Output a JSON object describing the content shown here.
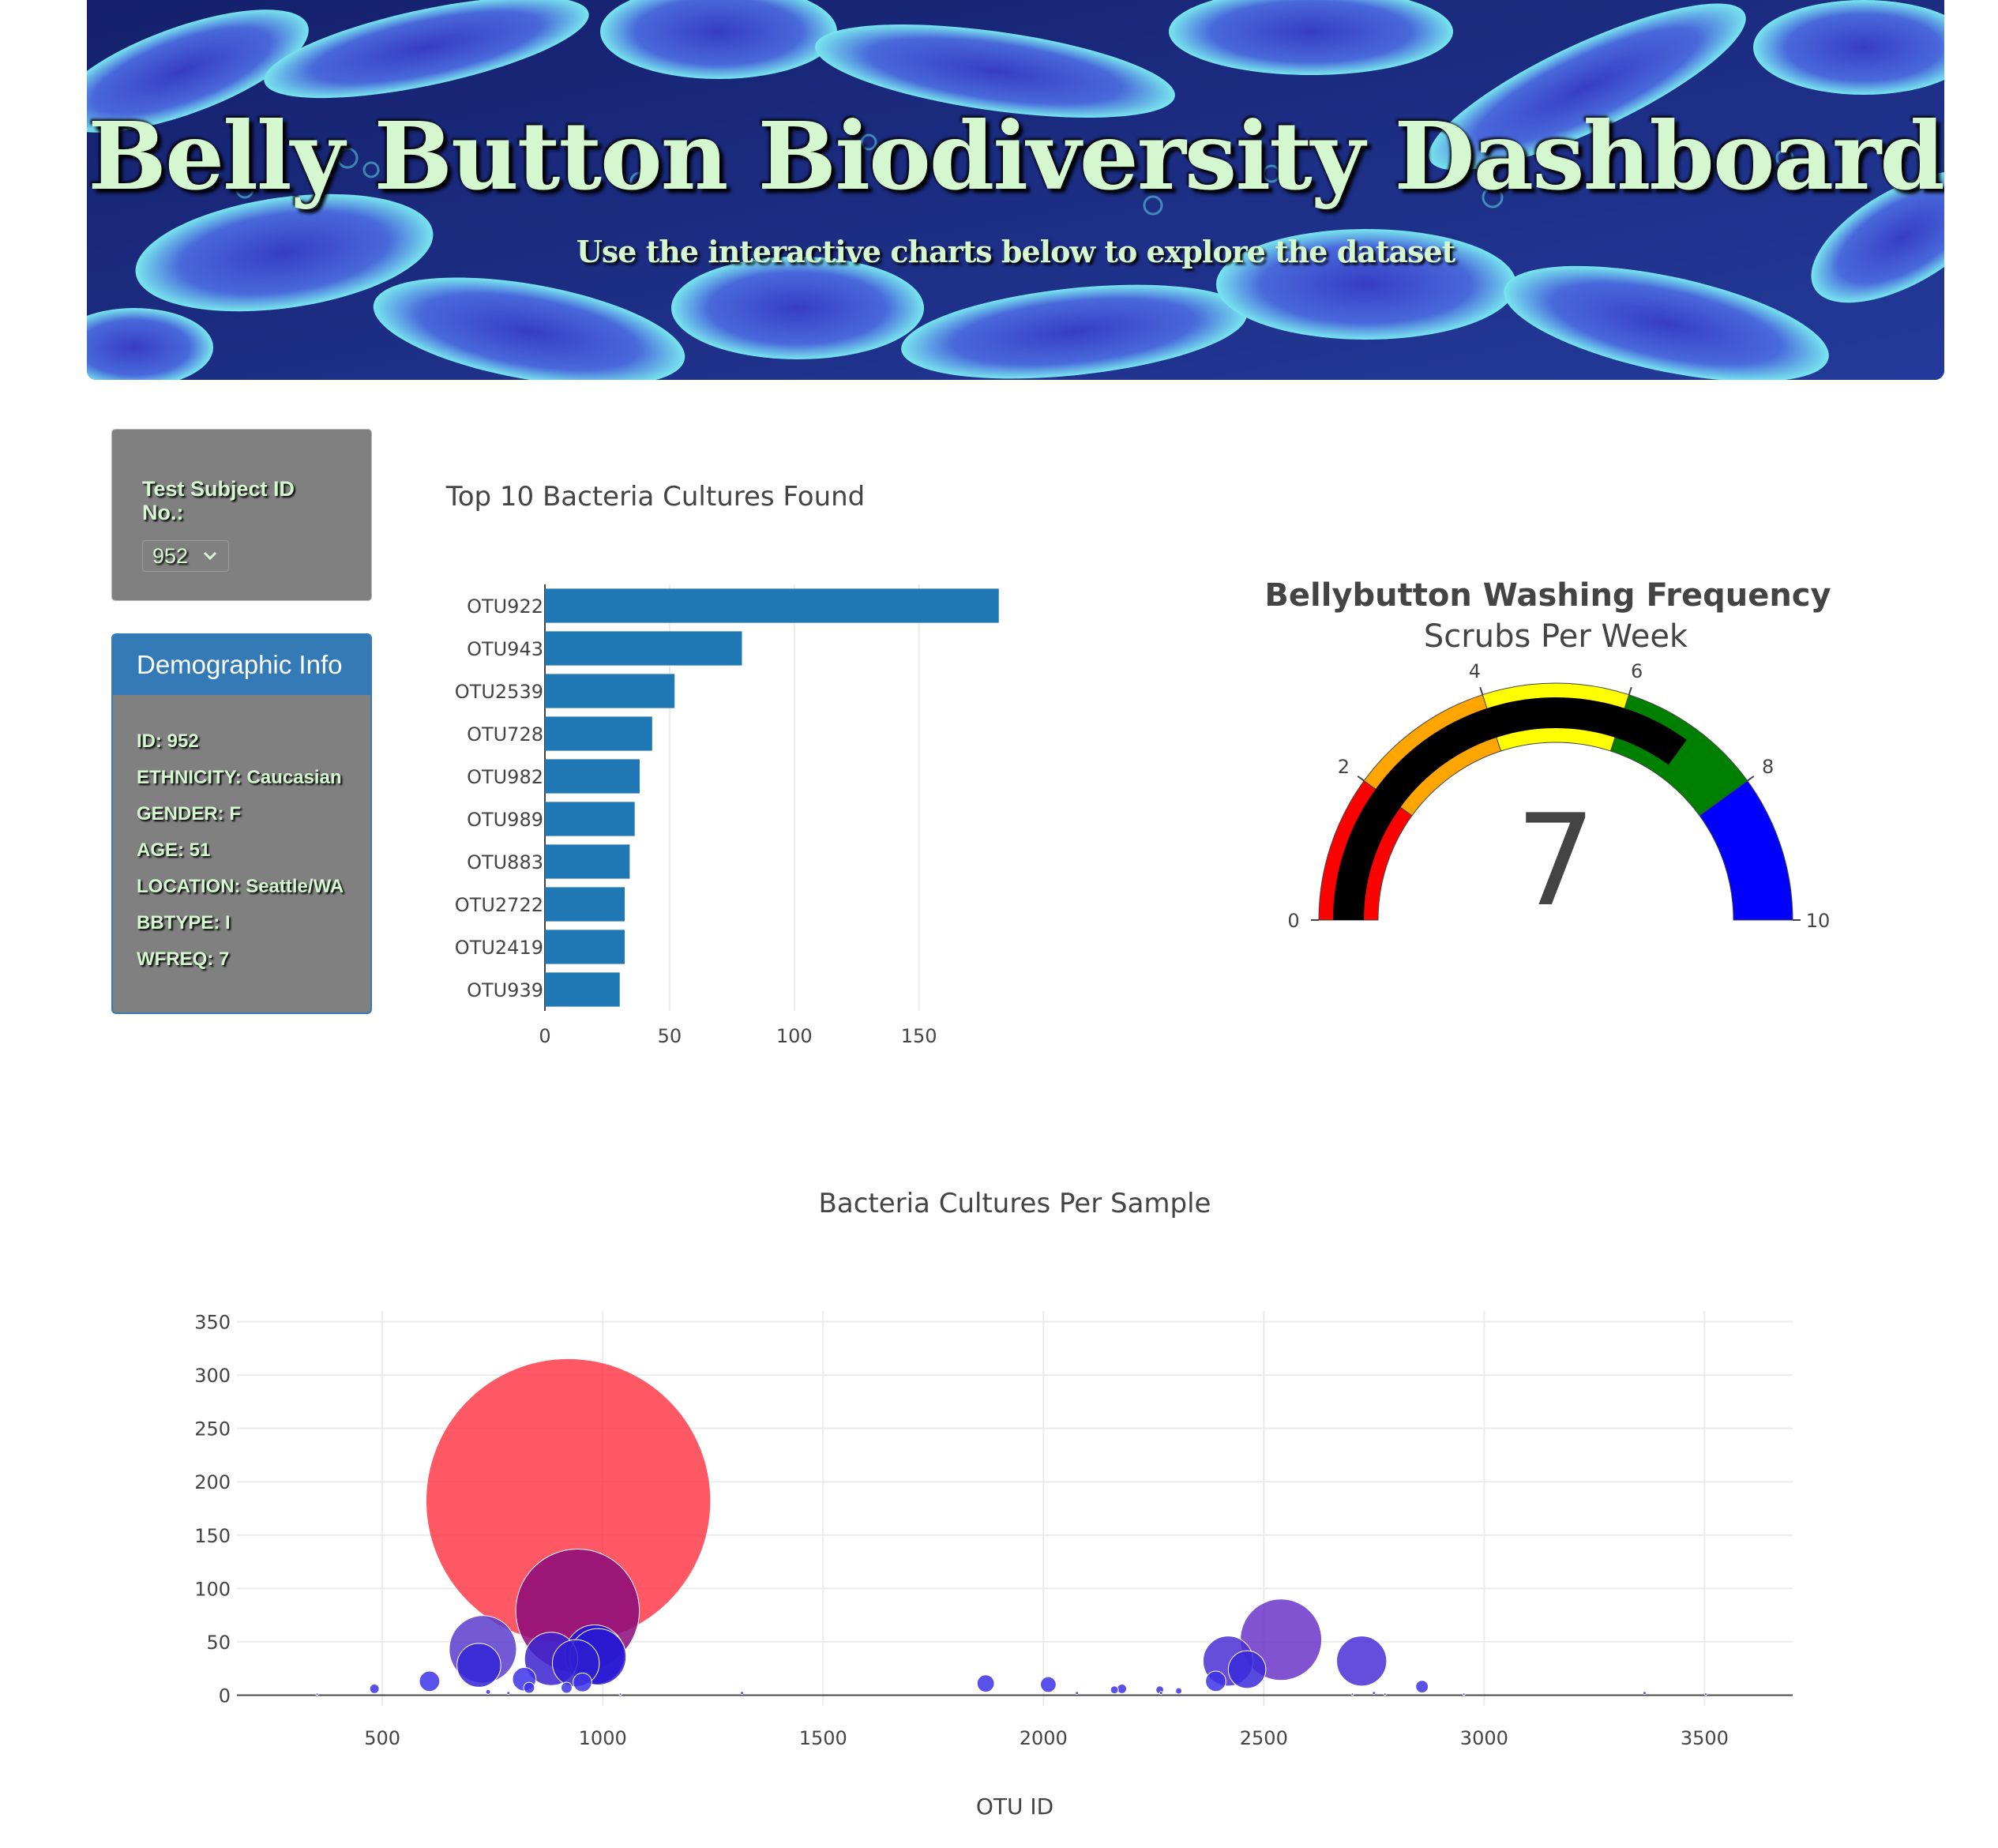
{
  "header": {
    "title": "Belly Button Biodiversity Dashboard",
    "subtitle": "Use the interactive charts below to explore the dataset"
  },
  "selector": {
    "label": "Test Subject ID No.:",
    "selected": "952"
  },
  "demographics": {
    "heading": "Demographic Info",
    "rows": [
      "ID: 952",
      "ETHNICITY: Caucasian",
      "GENDER: F",
      "AGE: 51",
      "LOCATION: Seattle/WA",
      "BBTYPE: I",
      "WFREQ: 7"
    ]
  },
  "chart_data": [
    {
      "type": "bar",
      "orientation": "horizontal",
      "title": "Top 10 Bacteria Cultures Found",
      "categories": [
        "OTU922",
        "OTU943",
        "OTU2539",
        "OTU728",
        "OTU982",
        "OTU989",
        "OTU883",
        "OTU2722",
        "OTU2419",
        "OTU939"
      ],
      "values": [
        182,
        79,
        52,
        43,
        38,
        36,
        34,
        32,
        32,
        30
      ],
      "xlim": [
        0,
        190
      ],
      "xticks": [
        0,
        50,
        100,
        150
      ],
      "color": "#1f77b4",
      "grid": true
    },
    {
      "type": "gauge",
      "title": "Bellybutton Washing Frequency",
      "subtitle": "Scrubs Per Week",
      "value": 7,
      "range": [
        0,
        10
      ],
      "ticks": [
        0,
        2,
        4,
        6,
        8,
        10
      ],
      "bar_color": "#000000",
      "steps": [
        {
          "range": [
            0,
            2
          ],
          "color": "#ff0000"
        },
        {
          "range": [
            2,
            4
          ],
          "color": "#ffa500"
        },
        {
          "range": [
            4,
            6
          ],
          "color": "#ffff00"
        },
        {
          "range": [
            6,
            8
          ],
          "color": "#008000"
        },
        {
          "range": [
            8,
            10
          ],
          "color": "#0000ff"
        }
      ]
    },
    {
      "type": "scatter",
      "subtype": "bubble",
      "title": "Bacteria Cultures Per Sample",
      "xlabel": "OTU ID",
      "ylabel": "",
      "xlim": [
        170,
        3700
      ],
      "ylim": [
        -10,
        360
      ],
      "xticks": [
        500,
        1000,
        1500,
        2000,
        2500,
        3000,
        3500
      ],
      "yticks": [
        0,
        50,
        100,
        150,
        200,
        250,
        300,
        350
      ],
      "grid": true,
      "points": [
        {
          "x": 922,
          "y": 182,
          "color": "#ff3b4a"
        },
        {
          "x": 943,
          "y": 79,
          "color": "#8b0a7a"
        },
        {
          "x": 2539,
          "y": 52,
          "color": "#6b35c8"
        },
        {
          "x": 728,
          "y": 43,
          "color": "#5a3ccc"
        },
        {
          "x": 982,
          "y": 38,
          "color": "#1e14d2"
        },
        {
          "x": 989,
          "y": 36,
          "color": "#2a1ad4"
        },
        {
          "x": 883,
          "y": 34,
          "color": "#3c22cf"
        },
        {
          "x": 2722,
          "y": 32,
          "color": "#4a2fd6"
        },
        {
          "x": 2419,
          "y": 32,
          "color": "#4a30d4"
        },
        {
          "x": 939,
          "y": 30,
          "color": "#2e1ed0"
        },
        {
          "x": 719,
          "y": 28,
          "color": "#3324d6"
        },
        {
          "x": 2462,
          "y": 24,
          "color": "#3a2ad8"
        },
        {
          "x": 822,
          "y": 15,
          "color": "#3d33e6"
        },
        {
          "x": 607,
          "y": 13,
          "color": "#3d33e6"
        },
        {
          "x": 1869,
          "y": 11,
          "color": "#3d33e6"
        },
        {
          "x": 2011,
          "y": 10,
          "color": "#3d33e6"
        },
        {
          "x": 2391,
          "y": 13,
          "color": "#3d33e6"
        },
        {
          "x": 954,
          "y": 12,
          "color": "#3d33e6"
        },
        {
          "x": 2859,
          "y": 8,
          "color": "#3d33e6"
        },
        {
          "x": 482,
          "y": 6,
          "color": "#3d33e6"
        },
        {
          "x": 833,
          "y": 7,
          "color": "#3d33e6"
        },
        {
          "x": 918,
          "y": 7,
          "color": "#3d33e6"
        },
        {
          "x": 2178,
          "y": 6,
          "color": "#3d33e6"
        },
        {
          "x": 2161,
          "y": 5,
          "color": "#3d33e6"
        },
        {
          "x": 2264,
          "y": 5,
          "color": "#3d33e6"
        },
        {
          "x": 2307,
          "y": 4,
          "color": "#3d33e6"
        },
        {
          "x": 740,
          "y": 3,
          "color": "#3d33e6"
        },
        {
          "x": 786,
          "y": 2,
          "color": "#3d33e6"
        },
        {
          "x": 1316,
          "y": 2,
          "color": "#3d33e6"
        },
        {
          "x": 2076,
          "y": 2,
          "color": "#3d33e6"
        },
        {
          "x": 2267,
          "y": 2,
          "color": "#3d33e6"
        },
        {
          "x": 2750,
          "y": 2,
          "color": "#3d33e6"
        },
        {
          "x": 3364,
          "y": 2,
          "color": "#3d33e6"
        },
        {
          "x": 352,
          "y": 1,
          "color": "#3d33e6"
        },
        {
          "x": 1040,
          "y": 1,
          "color": "#3d33e6"
        },
        {
          "x": 2701,
          "y": 1,
          "color": "#3d33e6"
        },
        {
          "x": 2775,
          "y": 1,
          "color": "#3d33e6"
        },
        {
          "x": 2954,
          "y": 1,
          "color": "#3d33e6"
        },
        {
          "x": 3503,
          "y": 1,
          "color": "#3d33e6"
        }
      ]
    }
  ]
}
